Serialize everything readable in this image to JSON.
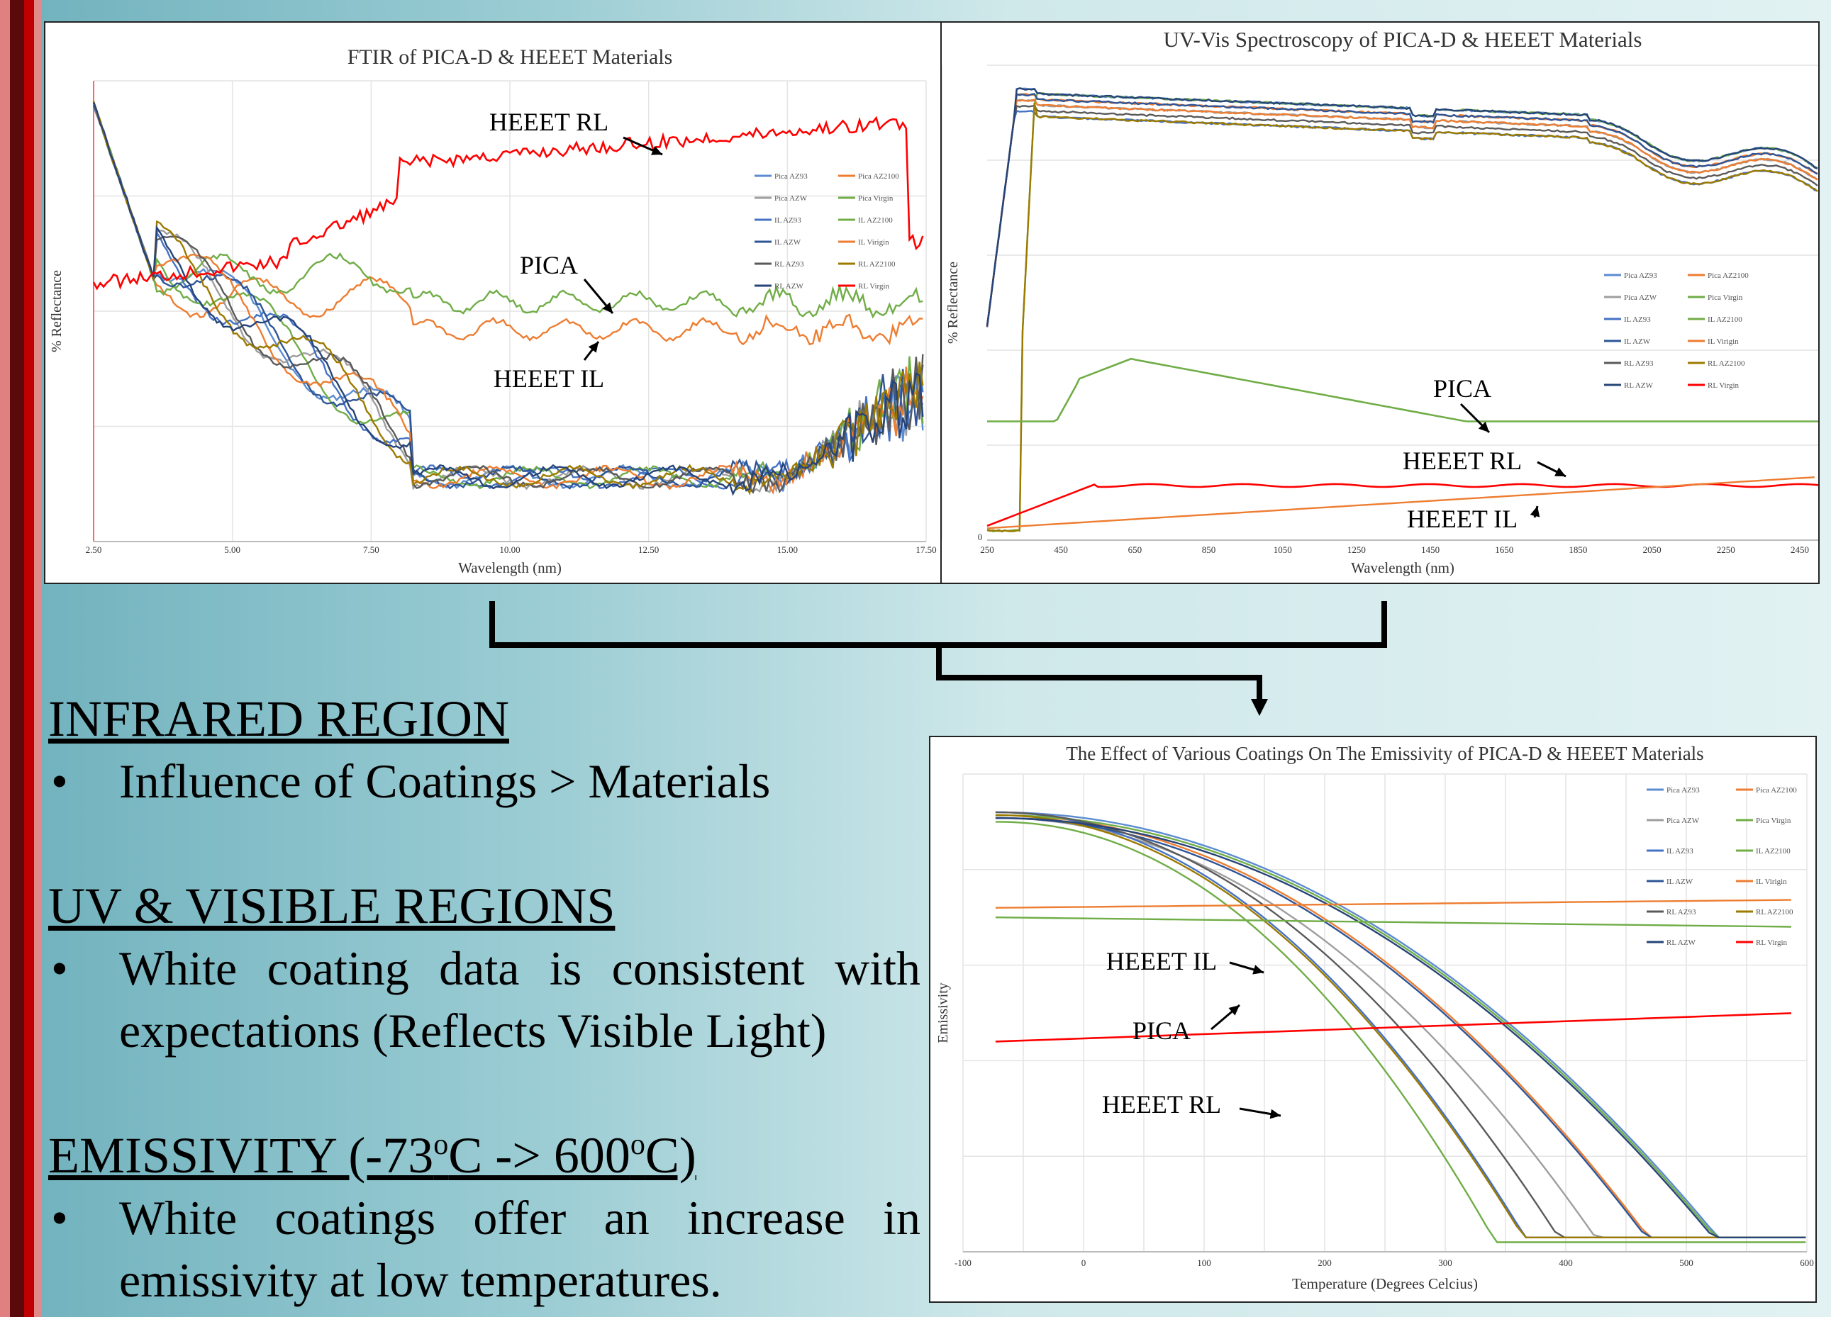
{
  "colors": {
    "teal_bg": "#7ab8c2",
    "red_bar": "#c00000",
    "dark_bar": "#5a0a0a"
  },
  "legend_series": [
    "Pica AZ93",
    "Pica AZ2100",
    "Pica AZW",
    "Pica Virgin",
    "IL AZ93",
    "IL AZ2100",
    "IL AZW",
    "IL Virigin",
    "RL AZ93",
    "RL AZ2100",
    "RL AZW",
    "RL Virgin"
  ],
  "legend_series_emis": [
    "Pica AZ93",
    "Pica AZ2100",
    "Pica AZW",
    "Pica Virgin",
    "IL AZ93",
    "IL AZ2100",
    "IL AZW",
    "IL Virigin",
    "RL AZ93",
    "RL AZ2100",
    "RL AZW",
    "RL Virgin"
  ],
  "chart_data": [
    {
      "type": "line",
      "title": "FTIR of PICA-D & HEEET Materials",
      "xlabel": "Wavelength (nm)",
      "ylabel": "% Reflectance",
      "x_ticks": [
        "2.50",
        "5.00",
        "7.50",
        "10.00",
        "12.50",
        "15.00",
        "17.50"
      ],
      "xlim": [
        2.5,
        17.5
      ],
      "annotations": [
        "HEEET RL",
        "PICA",
        "HEEET IL"
      ]
    },
    {
      "type": "line",
      "title": "UV-Vis Spectroscopy of PICA-D & HEEET Materials",
      "xlabel": "Wavelength (nm)",
      "ylabel": "% Reflectance",
      "x_ticks": [
        "250",
        "450",
        "650",
        "850",
        "1050",
        "1250",
        "1450",
        "1650",
        "1850",
        "2050",
        "2250",
        "2450"
      ],
      "y_ticks": [
        "0"
      ],
      "xlim": [
        250,
        2500
      ],
      "annotations": [
        "PICA",
        "HEEET RL",
        "HEEET IL"
      ]
    },
    {
      "type": "line",
      "title": "The Effect of Various Coatings On The Emissivity of PICA-D & HEEET Materials",
      "xlabel": "Temperature  (Degrees Celcius)",
      "ylabel": "Emissivity",
      "x_ticks": [
        "-100",
        "0",
        "100",
        "200",
        "300",
        "400",
        "500",
        "600"
      ],
      "xlim": [
        -100,
        600
      ],
      "annotations": [
        "HEEET IL",
        "PICA",
        "HEEET RL"
      ]
    }
  ],
  "text": {
    "h_ir": "INFRARED REGION",
    "b_ir": "Influence of Coatings > Materials",
    "h_uv": "UV & VISIBLE REGIONS",
    "b_uv": "White coating data is consistent with expectations (Reflects Visible Light)",
    "h_em_a": "EMISSIVITY (-73",
    "h_em_sup1": "o",
    "h_em_b": "C -> 600",
    "h_em_sup2": "o",
    "h_em_c": "C)",
    "b_em": "White coatings offer an increase in emissivity at low temperatures.",
    "bullet": "•"
  }
}
